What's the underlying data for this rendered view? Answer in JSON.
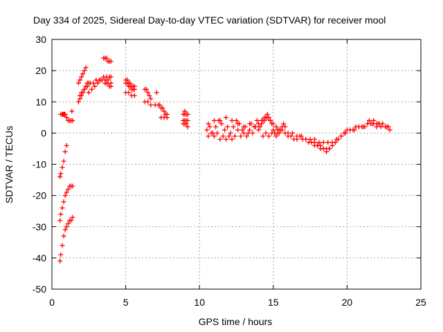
{
  "chart_data": {
    "type": "scatter",
    "title": "Day 334 of 2025, Sidereal Day-to-day VTEC variation (SDTVAR) for receiver mool",
    "xlabel": "GPS time / hours",
    "ylabel": "SDTVAR / TECUs",
    "xlim": [
      0,
      25
    ],
    "ylim": [
      -50,
      30
    ],
    "x_ticks": [
      0,
      5,
      10,
      15,
      20,
      25
    ],
    "y_ticks": [
      -50,
      -40,
      -30,
      -20,
      -10,
      0,
      10,
      20,
      30
    ],
    "x_tick_labels": [
      "0",
      "5",
      "10",
      "15",
      "20",
      "25"
    ],
    "y_tick_labels": [
      "-50",
      "-40",
      "-30",
      "-20",
      "-10",
      "0",
      "10",
      "20",
      "30"
    ],
    "grid": true,
    "marker": "+",
    "color": "#ff0000",
    "series": [
      {
        "name": "SDTVAR",
        "x": [
          0.55,
          0.6,
          0.7,
          0.8,
          0.9,
          1.0,
          1.1,
          1.2,
          1.3,
          1.4,
          0.55,
          0.6,
          0.7,
          0.8,
          0.9,
          1.0,
          1.1,
          1.2,
          1.3,
          1.4,
          0.55,
          0.6,
          0.7,
          0.8,
          0.9,
          1.0,
          0.6,
          0.7,
          0.75,
          0.8,
          0.85,
          0.9,
          1.0,
          1.1,
          1.2,
          1.3,
          1.4,
          0.7,
          1.35,
          1.8,
          1.9,
          2.0,
          2.1,
          2.2,
          2.3,
          2.4,
          2.5,
          1.8,
          1.9,
          2.0,
          2.1,
          2.2,
          2.3,
          2.5,
          2.7,
          2.9,
          3.1,
          3.3,
          3.5,
          3.7,
          3.9,
          4.0,
          1.9,
          2.0,
          2.2,
          2.4,
          2.6,
          2.8,
          3.0,
          3.2,
          3.4,
          3.6,
          3.8,
          4.0,
          3.6,
          3.7,
          3.8,
          3.9,
          4.0,
          3.5,
          3.6,
          3.7,
          3.8,
          3.9,
          4.0,
          5.0,
          5.1,
          5.2,
          5.3,
          5.4,
          5.5,
          5.6,
          5.0,
          5.1,
          5.2,
          5.3,
          5.4,
          5.5,
          5.6,
          5.0,
          5.2,
          5.4,
          5.6,
          6.3,
          6.4,
          6.5,
          6.6,
          6.7,
          6.3,
          6.5,
          6.7,
          7.1,
          7.0,
          7.2,
          7.3,
          7.4,
          7.5,
          7.6,
          7.7,
          7.8,
          7.4,
          7.6,
          7.8,
          8.9,
          9.0,
          9.1,
          9.2,
          8.9,
          9.0,
          9.1,
          9.2,
          8.9,
          9.0,
          9.1,
          9.2,
          9.0,
          9.2,
          10.5,
          10.7,
          10.9,
          11.1,
          11.3,
          11.5,
          11.7,
          11.9,
          12.1,
          12.3,
          12.5,
          12.7,
          12.9,
          13.1,
          13.3,
          13.5,
          13.7,
          13.9,
          10.6,
          10.8,
          11.0,
          11.2,
          11.4,
          11.6,
          11.8,
          12.0,
          12.2,
          12.4,
          12.6,
          12.8,
          13.0,
          13.2,
          13.4,
          13.6,
          13.8,
          10.6,
          11.0,
          11.4,
          11.8,
          12.2,
          12.6,
          13.0,
          13.4,
          13.8,
          14.0,
          14.1,
          14.2,
          14.3,
          14.4,
          14.5,
          14.6,
          14.7,
          14.8,
          14.9,
          15.0,
          15.1,
          15.2,
          15.3,
          15.4,
          15.5,
          15.6,
          15.7,
          15.8,
          14.0,
          14.2,
          14.4,
          14.6,
          14.8,
          15.0,
          15.2,
          15.4,
          15.6,
          15.8,
          14.3,
          14.5,
          14.7,
          14.9,
          15.1,
          15.3,
          16.0,
          16.2,
          16.4,
          16.6,
          16.8,
          17.0,
          17.2,
          17.4,
          17.6,
          17.8,
          18.0,
          18.2,
          18.4,
          18.6,
          18.8,
          19.0,
          16.0,
          16.3,
          16.6,
          16.9,
          17.2,
          17.5,
          17.8,
          18.1,
          18.4,
          18.7,
          19.0,
          17.8,
          18.0,
          18.2,
          18.4,
          18.6,
          18.8,
          19.2,
          19.4,
          19.6,
          19.8,
          20.0,
          20.2,
          20.4,
          20.6,
          20.8,
          21.0,
          21.2,
          21.4,
          21.6,
          21.8,
          22.0,
          22.2,
          22.4,
          22.6,
          22.8,
          19.3,
          19.6,
          19.9,
          20.2,
          20.5,
          20.8,
          21.1,
          21.4,
          21.7,
          22.0,
          22.3,
          22.6,
          22.9,
          21.5,
          21.8,
          22.1,
          22.4,
          22.7
        ],
        "y": [
          -41,
          -39,
          -36,
          -33,
          -31,
          -30,
          -29,
          -28,
          -28,
          -27,
          -28,
          -26,
          -24,
          -22,
          -20,
          -19,
          -18,
          -17,
          -17,
          -17,
          -14,
          -13,
          -11,
          -9,
          -6,
          -4,
          6,
          6,
          6,
          6,
          6,
          6,
          5,
          4,
          4,
          4,
          4,
          6,
          7,
          10,
          11,
          12,
          13,
          14,
          15,
          16,
          16,
          16,
          17,
          18,
          19,
          20,
          21,
          13,
          14,
          15,
          16,
          17,
          18,
          18,
          18,
          18,
          12,
          13,
          14,
          15,
          16,
          16,
          17,
          17,
          17,
          17,
          17,
          16,
          16,
          16,
          16,
          15,
          15,
          24,
          24,
          24,
          23,
          23,
          23,
          17,
          17,
          16,
          16,
          15,
          15,
          15,
          16,
          16,
          15,
          15,
          14,
          14,
          14,
          13,
          13,
          12,
          12,
          14,
          14,
          13,
          12,
          11,
          10,
          10,
          9,
          13,
          9,
          9,
          9,
          8,
          8,
          7,
          6,
          6,
          5,
          5,
          5,
          6,
          6,
          6,
          6,
          4,
          4,
          4,
          4,
          3,
          3,
          3,
          2,
          7,
          6,
          1,
          2,
          0,
          2,
          4,
          3,
          1,
          2,
          0,
          2,
          4,
          3,
          1,
          2,
          0,
          3,
          2,
          4,
          -1,
          0,
          -1,
          0,
          -2,
          -1,
          -2,
          -1,
          -2,
          -1,
          1,
          -1,
          0,
          -1,
          1,
          0,
          2,
          3,
          4,
          4,
          5,
          4,
          3,
          2,
          3,
          2,
          1,
          2,
          3,
          4,
          5,
          5,
          6,
          5,
          4,
          3,
          1,
          0,
          -1,
          0,
          0,
          1,
          2,
          3,
          2,
          3,
          4,
          4,
          5,
          4,
          3,
          2,
          1,
          1,
          0,
          -1,
          0,
          -1,
          0,
          0,
          1,
          -1,
          -1,
          -2,
          -2,
          -1,
          -2,
          -2,
          -3,
          -3,
          -3,
          -4,
          -4,
          -5,
          -5,
          -5,
          -4,
          0,
          0,
          -1,
          -1,
          -2,
          -2,
          -2,
          -3,
          -3,
          -3,
          -3,
          -4,
          -4,
          -5,
          -5,
          -6,
          -5,
          -3,
          -2,
          -1,
          0,
          1,
          1,
          1,
          2,
          2,
          2,
          2,
          3,
          3,
          3,
          3,
          3,
          3,
          2,
          2,
          -2,
          -1,
          0,
          1,
          1,
          2,
          2,
          3,
          3,
          2,
          2,
          2,
          1,
          4,
          4,
          3,
          3,
          2
        ]
      }
    ]
  }
}
